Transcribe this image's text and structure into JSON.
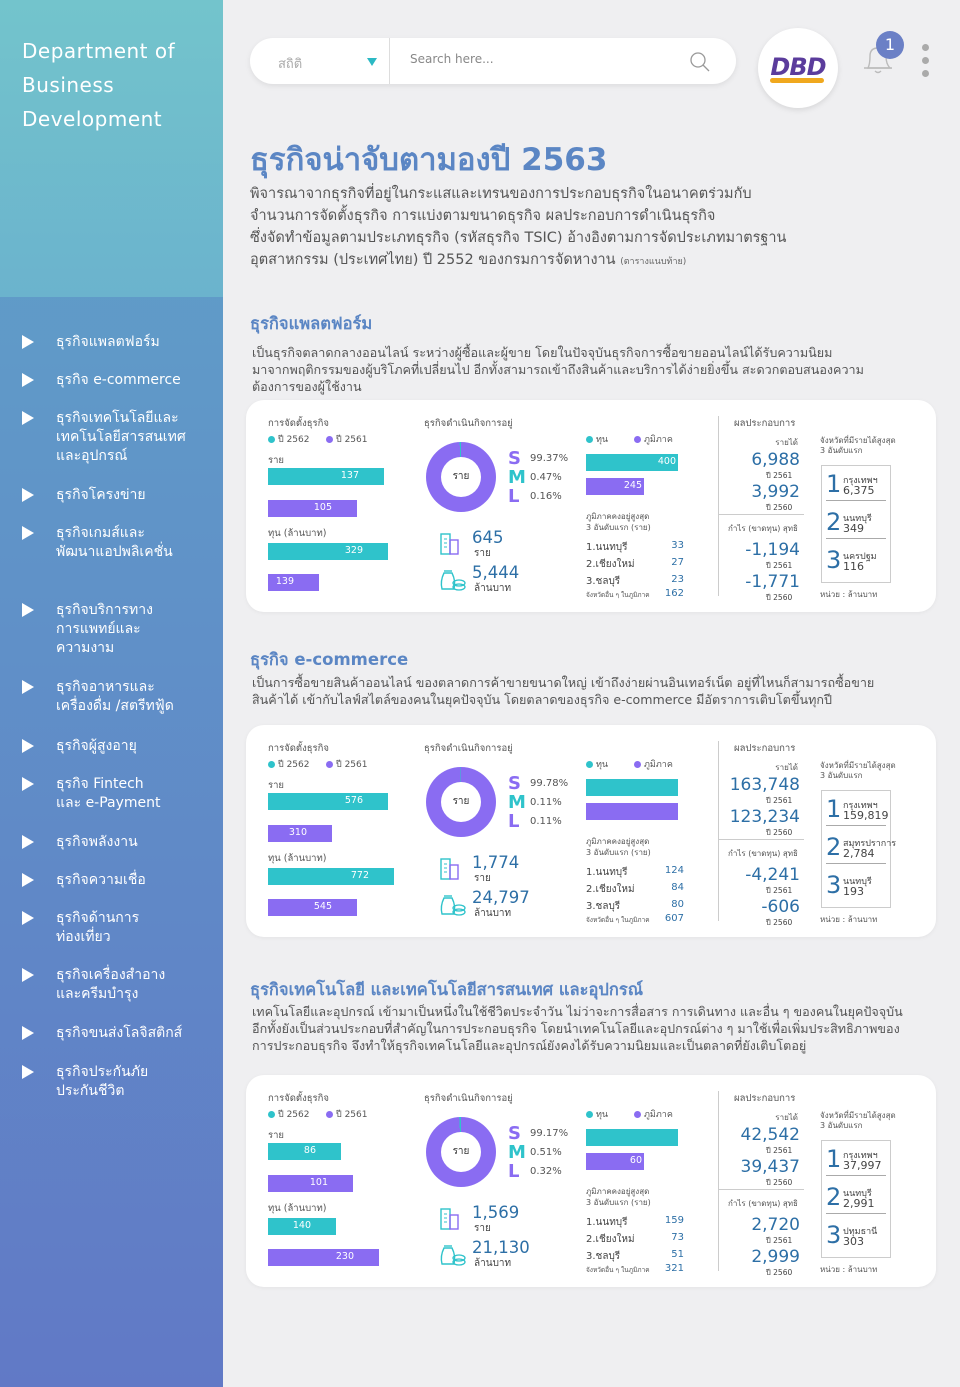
{
  "brand": {
    "dept_line1": "Department of",
    "dept_line2": "Business",
    "dept_line3": "Development",
    "logo_text": "DBD"
  },
  "colors": {
    "teal": "#2fc3cb",
    "purple": "#8a6cf2",
    "accent": "#5b86c4"
  },
  "search": {
    "select_value": "สถิติ",
    "placeholder": "Search here..."
  },
  "notification": {
    "count": "1"
  },
  "sidebar": {
    "items": [
      {
        "l1": "ธุรกิจแพลตฟอร์ม",
        "l2": "",
        "l3": ""
      },
      {
        "l1": "ธุรกิจ e-commerce",
        "l2": "",
        "l3": ""
      },
      {
        "l1": "ธุรกิจเทคโนโลยีและ",
        "l2": "เทคโนโลยีสารสนเทศ",
        "l3": "และอุปกรณ์"
      },
      {
        "l1": "ธุรกิจโครงข่าย",
        "l2": "",
        "l3": ""
      },
      {
        "l1": "ธุรกิจเกมส์และ",
        "l2": "พัฒนาแอปพลิเคชั่น",
        "l3": ""
      },
      {
        "l1": "ธุรกิจบริการทาง",
        "l2": "การแพทย์และ",
        "l3": "ความงาม"
      },
      {
        "l1": "ธุรกิจอาหารและ",
        "l2": "เครื่องดื่ม /สตรีทฟู้ด",
        "l3": ""
      },
      {
        "l1": "ธุรกิจผู้สูงอายุ",
        "l2": "",
        "l3": ""
      },
      {
        "l1": "ธุรกิจ Fintech",
        "l2": "และ e-Payment",
        "l3": ""
      },
      {
        "l1": "ธุรกิจพลังงาน",
        "l2": "",
        "l3": ""
      },
      {
        "l1": "ธุรกิจความเชื่อ",
        "l2": "",
        "l3": ""
      },
      {
        "l1": "ธุรกิจด้านการ",
        "l2": "ท่องเที่ยว",
        "l3": ""
      },
      {
        "l1": "ธุรกิจเครื่องสำอาง",
        "l2": "และครีมบำรุง",
        "l3": ""
      },
      {
        "l1": "ธุรกิจขนส่งโลจิสติกส์",
        "l2": "",
        "l3": ""
      },
      {
        "l1": "ธุรกิจประกันภัย",
        "l2": "ประกันชีวิต",
        "l3": ""
      }
    ]
  },
  "page": {
    "title": "ธุรกิจน่าจับตามองปี 2563",
    "intro": [
      "พิจารณาจากธุรกิจที่อยู่ในกระแสและเทรนของการประกอบธุรกิจในอนาคตร่วมกับ",
      "จำนวนการจัดตั้งธุรกิจ การแบ่งตามขนาดธุรกิจ ผลประกอบการดำเนินธุรกิจ",
      "ซึ่งจัดทำข้อมูลตามประเภทธุรกิจ (รหัสธุรกิจ TSIC) อ้างอิงตามการจัดประเภทมาตรฐาน",
      "อุตสาหกรรม (ประเทศไทย) ปี 2552 ของกรมการจัดหางาน"
    ],
    "intro_note": "(ตารางแนบท้าย)"
  },
  "labels": {
    "est": "การจัดตั้งธุรกิจ",
    "y62": "ปี 2562",
    "y61": "ปี 2561",
    "count": "ราย",
    "capital": "ทุน (ล้านบาท)",
    "active": "ธุรกิจดำเนินกิจการอยู่",
    "donut_center": "ราย",
    "s": "S",
    "m": "M",
    "l": "L",
    "cap_short": "ทุน",
    "region": "ภูมิภาค",
    "top3": "ภูมิภาคคงอยู่สูงสุด",
    "top3b": "3 อันดับแรก (ราย)",
    "unit_count": "ราย",
    "unit_mb": "ล้านบาท",
    "others": "จังหวัดอื่น ๆ ในภูมิภาค",
    "perf": "ผลประกอบการ",
    "revenue": "รายได้",
    "profit": "กำไร (ขาดทุน) สุทธิ",
    "py61": "ปี 2561",
    "py60": "ปี 2560",
    "top_prov": "จังหวัดที่มีรายได้สูงสุด",
    "top_prov_b": "3 อันดับแรก",
    "unit_note": "หน่วย : ล้านบาท"
  },
  "sections": [
    {
      "title": "ธุรกิจแพลตฟอร์ม",
      "desc": [
        "เป็นธุรกิจตลาดกลางออนไลน์ ระหว่างผู้ซื้อและผู้ขาย โดยในปัจจุบันธุรกิจการซื้อขายออนไลน์ได้รับความนิยม",
        "มาจากพฤติกรรมของผู้บริโภคที่เปลี่ยนไป อีกทั้งสามารถเข้าถึงสินค้าและบริการได้ง่ายยิ่งขึ้น สะดวกตอบสนองความ",
        "ต้องการของผู้ใช้งาน"
      ],
      "est_count_62": "137",
      "est_count_61": "105",
      "est_cap_62": "329",
      "est_cap_61": "139",
      "s_pct": "99.37%",
      "m_pct": "0.47%",
      "l_pct": "0.16%",
      "active_count": "645",
      "active_cap": "5,444",
      "reg_cap": "400",
      "reg_count": "245",
      "rows": [
        {
          "name": "1.นนทบุรี",
          "v": "33"
        },
        {
          "name": "2.เชียงใหม่",
          "v": "27"
        },
        {
          "name": "3.ชลบุรี",
          "v": "23"
        }
      ],
      "others": "162",
      "rev61": "6,988",
      "rev60": "3,992",
      "pro61": "-1,194",
      "pro60": "-1,771",
      "prov": [
        {
          "n": "1",
          "name": "กรุงเทพฯ",
          "v": "6,375"
        },
        {
          "n": "2",
          "name": "นนทบุรี",
          "v": "349"
        },
        {
          "n": "3",
          "name": "นครปฐม",
          "v": "116"
        }
      ]
    },
    {
      "title": "ธุรกิจ e-commerce",
      "desc": [
        "เป็นการซื้อขายสินค้าออนไลน์ ของตลาดการค้าขายขนาดใหญ่ เข้าถึงง่ายผ่านอินเทอร์เน็ต อยู่ที่ไหนก็สามารถซื้อขาย",
        "สินค้าได้ เข้ากับไลฟ์สไตล์ของคนในยุคปัจจุบัน โดยตลาดของธุรกิจ e-commerce มีอัตราการเติบโตขึ้นทุกปี"
      ],
      "est_count_62": "576",
      "est_count_61": "310",
      "est_cap_62": "772",
      "est_cap_61": "545",
      "s_pct": "99.78%",
      "m_pct": "0.11%",
      "l_pct": "0.11%",
      "active_count": "1,774",
      "active_cap": "24,797",
      "reg_cap": "",
      "reg_count": "",
      "rows": [
        {
          "name": "1.นนทบุรี",
          "v": "124"
        },
        {
          "name": "2.เชียงใหม่",
          "v": "84"
        },
        {
          "name": "3.ชลบุรี",
          "v": "80"
        }
      ],
      "others": "607",
      "rev61": "163,748",
      "rev60": "123,234",
      "pro61": "-4,241",
      "pro60": "-606",
      "prov": [
        {
          "n": "1",
          "name": "กรุงเทพฯ",
          "v": "159,819"
        },
        {
          "n": "2",
          "name": "สมุทรปราการ",
          "v": "2,784"
        },
        {
          "n": "3",
          "name": "นนทบุรี",
          "v": "193"
        }
      ]
    },
    {
      "title": "ธุรกิจเทคโนโลยี และเทคโนโลยีสารสนเทศ และอุปกรณ์",
      "desc": [
        "เทคโนโลยีและอุปกรณ์ เข้ามาเป็นหนึ่งในใช้ชีวิตประจำวัน ไม่ว่าจะการสื่อสาร การเดินทาง และอื่น ๆ ของคนในยุคปัจจุบัน",
        "อีกทั้งยังเป็นส่วนประกอบที่สำคัญในการประกอบธุรกิจ โดยนำเทคโนโลยีและอุปกรณ์ต่าง ๆ มาใช้เพื่อเพิ่มประสิทธิภาพของ",
        "การประกอบธุรกิจ จึงทำให้ธุรกิจเทคโนโลยีและอุปกรณ์ยังคงได้รับความนิยมและเป็นตลาดที่ยังเติบโตอยู่"
      ],
      "est_count_62": "86",
      "est_count_61": "101",
      "est_cap_62": "140",
      "est_cap_61": "230",
      "s_pct": "99.17%",
      "m_pct": "0.51%",
      "l_pct": "0.32%",
      "active_count": "1,569",
      "active_cap": "21,130",
      "reg_cap": "",
      "reg_count": "60",
      "rows": [
        {
          "name": "1.นนทบุรี",
          "v": "159"
        },
        {
          "name": "2.เชียงใหม่",
          "v": "73"
        },
        {
          "name": "3.ชลบุรี",
          "v": "51"
        }
      ],
      "others": "321",
      "rev61": "42,542",
      "rev60": "39,437",
      "pro61": "2,720",
      "pro60": "2,999",
      "prov": [
        {
          "n": "1",
          "name": "กรุงเทพฯ",
          "v": "37,997"
        },
        {
          "n": "2",
          "name": "นนทบุรี",
          "v": "2,991"
        },
        {
          "n": "3",
          "name": "ปทุมธานี",
          "v": "303"
        }
      ]
    }
  ]
}
